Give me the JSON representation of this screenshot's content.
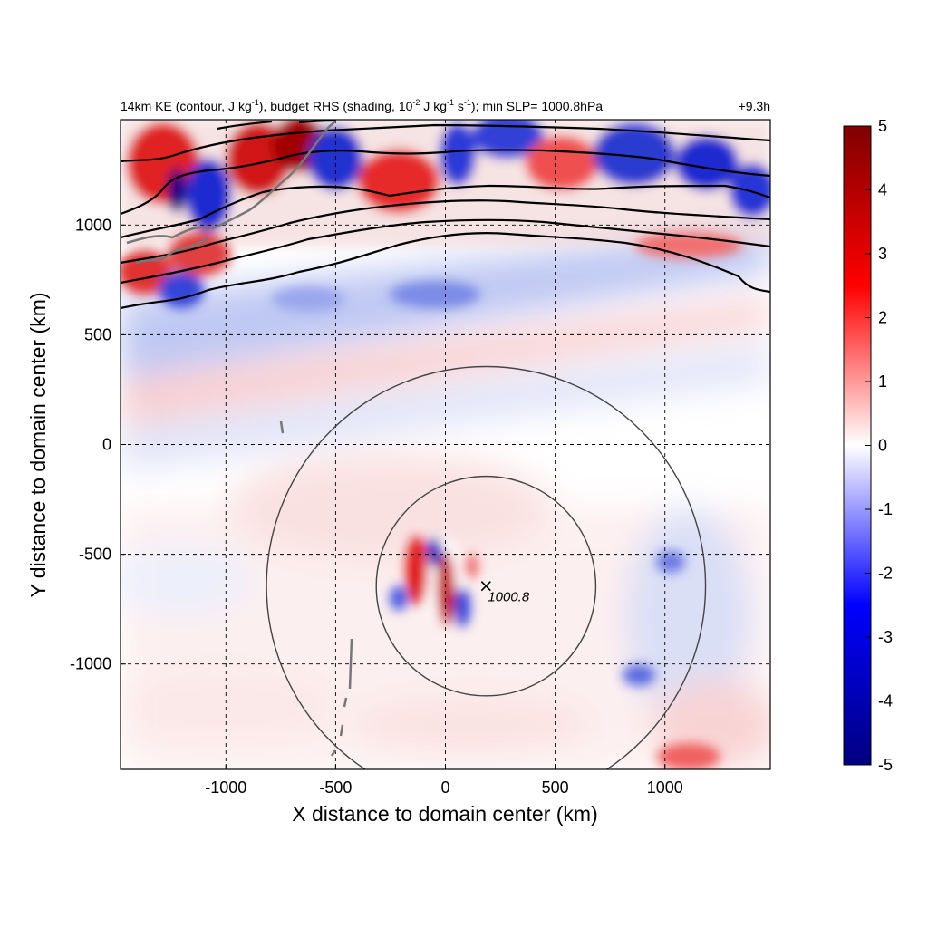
{
  "chart_data": {
    "type": "heatmap",
    "title": {
      "p1": "14km KE (contour, J kg",
      "p1_sup": "-1",
      "p2": "), budget RHS (shading, 10",
      "p2_sup": "-2",
      "p3": " J kg",
      "p3_sup": "-1",
      "p4": " s",
      "p4_sup": "-1",
      "p5": "); min SLP= 1000.8hPa"
    },
    "time_label": "+9.3h",
    "xlabel": "X distance to domain center (km)",
    "ylabel": "Y distance to domain center (km)",
    "xlim": [
      -1480,
      1480
    ],
    "ylim": [
      -1480,
      1480
    ],
    "xticks": [
      -1000,
      -500,
      0,
      500,
      1000
    ],
    "yticks": [
      -1000,
      -500,
      0,
      500,
      1000
    ],
    "grid": true,
    "colorbar": {
      "range": [
        -5,
        5
      ],
      "ticks": [
        5,
        4,
        3,
        2,
        1,
        0,
        -1,
        -2,
        -3,
        -4,
        -5
      ],
      "colors": [
        "#000080",
        "#0000ff",
        "#ffffff",
        "#ff0000",
        "#800000"
      ]
    },
    "min_slp": {
      "x": 185,
      "y": -645,
      "label": "1000.8"
    },
    "range_rings_km": [
      500,
      1000
    ],
    "contour_levels_count": 7
  }
}
